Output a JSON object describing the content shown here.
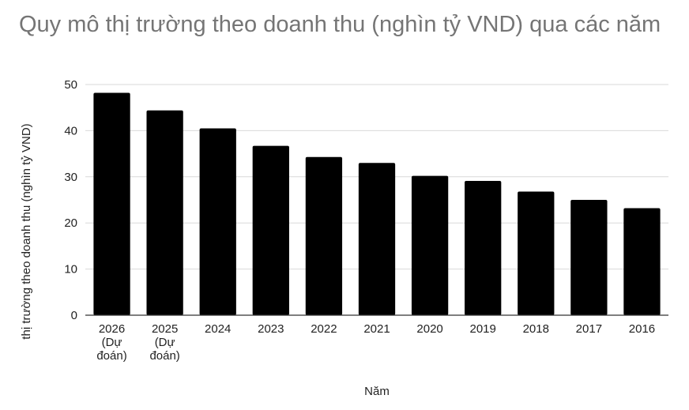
{
  "chart_data": {
    "type": "bar",
    "title": "Quy mô thị trường theo doanh thu (nghìn tỷ VND) qua các năm",
    "xlabel": "Năm",
    "ylabel": "thị trường theo doanh thu (nghìn tỷ VND)",
    "categories": [
      "2026 (Dự đoán)",
      "2025 (Dự đoán)",
      "2024",
      "2023",
      "2022",
      "2021",
      "2020",
      "2019",
      "2018",
      "2017",
      "2016"
    ],
    "category_lines": [
      [
        "2026",
        "(Dự",
        "đoán)"
      ],
      [
        "2025",
        "(Dự",
        "đoán)"
      ],
      [
        "2024"
      ],
      [
        "2023"
      ],
      [
        "2022"
      ],
      [
        "2021"
      ],
      [
        "2020"
      ],
      [
        "2019"
      ],
      [
        "2018"
      ],
      [
        "2017"
      ],
      [
        "2016"
      ]
    ],
    "values": [
      48.2,
      44.4,
      40.5,
      36.7,
      34.3,
      33.0,
      30.2,
      29.1,
      26.8,
      25.0,
      23.2
    ],
    "ylim": [
      0,
      50
    ],
    "yticks": [
      "0",
      "10",
      "20",
      "30",
      "40",
      "50"
    ],
    "grid": true,
    "bar_color": "#000000"
  }
}
